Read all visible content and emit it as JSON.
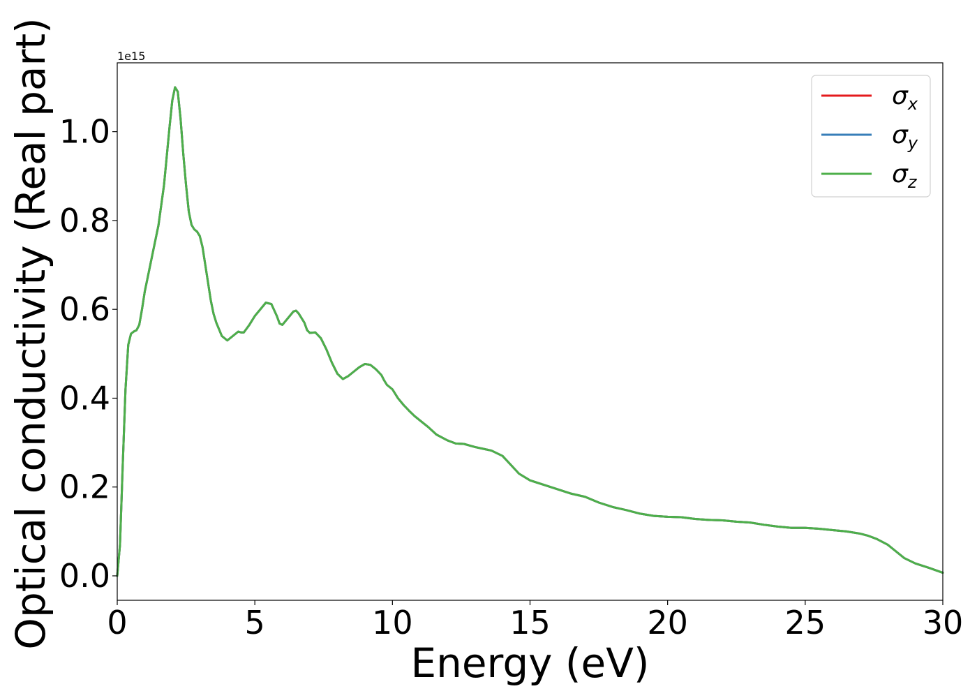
{
  "chart_data": {
    "type": "line",
    "xlabel": "Energy (eV)",
    "ylabel": "Optical conductivity (Real part)",
    "y_offset_label": "1e15",
    "xlim": [
      0,
      30
    ],
    "ylim": [
      -0.055,
      1.155
    ],
    "x_ticks": [
      0,
      5,
      10,
      15,
      20,
      25,
      30
    ],
    "x_tick_labels": [
      "0",
      "5",
      "10",
      "15",
      "20",
      "25",
      "30"
    ],
    "y_ticks": [
      0.0,
      0.2,
      0.4,
      0.6,
      0.8,
      1.0
    ],
    "y_tick_labels": [
      "0.0",
      "0.2",
      "0.4",
      "0.6",
      "0.8",
      "1.0"
    ],
    "grid": false,
    "legend_position": "top-right",
    "x": [
      0,
      0.1,
      0.2,
      0.3,
      0.4,
      0.5,
      0.6,
      0.7,
      0.8,
      0.9,
      1.0,
      1.1,
      1.2,
      1.3,
      1.5,
      1.7,
      1.9,
      2.0,
      2.1,
      2.2,
      2.3,
      2.4,
      2.5,
      2.6,
      2.7,
      2.8,
      2.9,
      3.0,
      3.1,
      3.2,
      3.3,
      3.4,
      3.5,
      3.6,
      3.8,
      4.0,
      4.2,
      4.4,
      4.5,
      4.6,
      4.8,
      4.9,
      5.0,
      5.2,
      5.4,
      5.6,
      5.8,
      5.9,
      6.0,
      6.2,
      6.4,
      6.5,
      6.6,
      6.8,
      6.9,
      7.0,
      7.2,
      7.4,
      7.6,
      7.8,
      8.0,
      8.2,
      8.4,
      8.6,
      8.8,
      9.0,
      9.2,
      9.4,
      9.6,
      9.7,
      9.8,
      10.0,
      10.2,
      10.4,
      10.6,
      10.8,
      11.0,
      11.3,
      11.6,
      12.0,
      12.3,
      12.6,
      13.0,
      13.3,
      13.6,
      14.0,
      14.3,
      14.6,
      15.0,
      15.5,
      16.0,
      16.5,
      17.0,
      17.5,
      18.0,
      18.5,
      19.0,
      19.5,
      20.0,
      20.5,
      21.0,
      21.5,
      22.0,
      22.5,
      23.0,
      23.5,
      24.0,
      24.5,
      25.0,
      25.5,
      26.0,
      26.5,
      27.0,
      27.3,
      27.6,
      28.0,
      28.3,
      28.6,
      29.0,
      29.5,
      30.0
    ],
    "series": [
      {
        "name": "σx",
        "legend_main": "σ",
        "legend_sub": "x",
        "color": "#e41a1c",
        "values": [
          0.0,
          0.07,
          0.25,
          0.42,
          0.52,
          0.545,
          0.55,
          0.553,
          0.565,
          0.6,
          0.64,
          0.67,
          0.7,
          0.73,
          0.79,
          0.88,
          1.01,
          1.07,
          1.1,
          1.09,
          1.03,
          0.95,
          0.88,
          0.82,
          0.79,
          0.78,
          0.775,
          0.765,
          0.74,
          0.7,
          0.66,
          0.62,
          0.59,
          0.57,
          0.54,
          0.53,
          0.54,
          0.55,
          0.548,
          0.548,
          0.565,
          0.575,
          0.585,
          0.6,
          0.615,
          0.612,
          0.585,
          0.568,
          0.565,
          0.58,
          0.595,
          0.597,
          0.59,
          0.57,
          0.553,
          0.547,
          0.548,
          0.535,
          0.51,
          0.48,
          0.455,
          0.443,
          0.45,
          0.46,
          0.47,
          0.477,
          0.475,
          0.465,
          0.452,
          0.44,
          0.43,
          0.42,
          0.4,
          0.385,
          0.372,
          0.36,
          0.35,
          0.335,
          0.318,
          0.305,
          0.298,
          0.297,
          0.29,
          0.286,
          0.282,
          0.27,
          0.25,
          0.23,
          0.215,
          0.205,
          0.195,
          0.185,
          0.178,
          0.165,
          0.155,
          0.148,
          0.14,
          0.135,
          0.133,
          0.132,
          0.128,
          0.126,
          0.125,
          0.122,
          0.12,
          0.115,
          0.111,
          0.108,
          0.108,
          0.106,
          0.103,
          0.1,
          0.095,
          0.09,
          0.083,
          0.07,
          0.055,
          0.04,
          0.028,
          0.018,
          0.007
        ]
      },
      {
        "name": "σy",
        "legend_main": "σ",
        "legend_sub": "y",
        "color": "#377eb8",
        "values": [
          0.0,
          0.07,
          0.25,
          0.42,
          0.52,
          0.545,
          0.55,
          0.553,
          0.565,
          0.6,
          0.64,
          0.67,
          0.7,
          0.73,
          0.79,
          0.88,
          1.01,
          1.07,
          1.1,
          1.09,
          1.03,
          0.95,
          0.88,
          0.82,
          0.79,
          0.78,
          0.775,
          0.765,
          0.74,
          0.7,
          0.66,
          0.62,
          0.59,
          0.57,
          0.54,
          0.53,
          0.54,
          0.55,
          0.548,
          0.548,
          0.565,
          0.575,
          0.585,
          0.6,
          0.615,
          0.612,
          0.585,
          0.568,
          0.565,
          0.58,
          0.595,
          0.597,
          0.59,
          0.57,
          0.553,
          0.547,
          0.548,
          0.535,
          0.51,
          0.48,
          0.455,
          0.443,
          0.45,
          0.46,
          0.47,
          0.477,
          0.475,
          0.465,
          0.452,
          0.44,
          0.43,
          0.42,
          0.4,
          0.385,
          0.372,
          0.36,
          0.35,
          0.335,
          0.318,
          0.305,
          0.298,
          0.297,
          0.29,
          0.286,
          0.282,
          0.27,
          0.25,
          0.23,
          0.215,
          0.205,
          0.195,
          0.185,
          0.178,
          0.165,
          0.155,
          0.148,
          0.14,
          0.135,
          0.133,
          0.132,
          0.128,
          0.126,
          0.125,
          0.122,
          0.12,
          0.115,
          0.111,
          0.108,
          0.108,
          0.106,
          0.103,
          0.1,
          0.095,
          0.09,
          0.083,
          0.07,
          0.055,
          0.04,
          0.028,
          0.018,
          0.007
        ]
      },
      {
        "name": "σz",
        "legend_main": "σ",
        "legend_sub": "z",
        "color": "#4daf4a",
        "values": [
          0.0,
          0.07,
          0.25,
          0.42,
          0.52,
          0.545,
          0.55,
          0.553,
          0.565,
          0.6,
          0.64,
          0.67,
          0.7,
          0.73,
          0.79,
          0.88,
          1.01,
          1.07,
          1.1,
          1.09,
          1.03,
          0.95,
          0.88,
          0.82,
          0.79,
          0.78,
          0.775,
          0.765,
          0.74,
          0.7,
          0.66,
          0.62,
          0.59,
          0.57,
          0.54,
          0.53,
          0.54,
          0.55,
          0.548,
          0.548,
          0.565,
          0.575,
          0.585,
          0.6,
          0.615,
          0.612,
          0.585,
          0.568,
          0.565,
          0.58,
          0.595,
          0.597,
          0.59,
          0.57,
          0.553,
          0.547,
          0.548,
          0.535,
          0.51,
          0.48,
          0.455,
          0.443,
          0.45,
          0.46,
          0.47,
          0.477,
          0.475,
          0.465,
          0.452,
          0.44,
          0.43,
          0.42,
          0.4,
          0.385,
          0.372,
          0.36,
          0.35,
          0.335,
          0.318,
          0.305,
          0.298,
          0.297,
          0.29,
          0.286,
          0.282,
          0.27,
          0.25,
          0.23,
          0.215,
          0.205,
          0.195,
          0.185,
          0.178,
          0.165,
          0.155,
          0.148,
          0.14,
          0.135,
          0.133,
          0.132,
          0.128,
          0.126,
          0.125,
          0.122,
          0.12,
          0.115,
          0.111,
          0.108,
          0.108,
          0.106,
          0.103,
          0.1,
          0.095,
          0.09,
          0.083,
          0.07,
          0.055,
          0.04,
          0.028,
          0.018,
          0.007
        ]
      }
    ]
  }
}
